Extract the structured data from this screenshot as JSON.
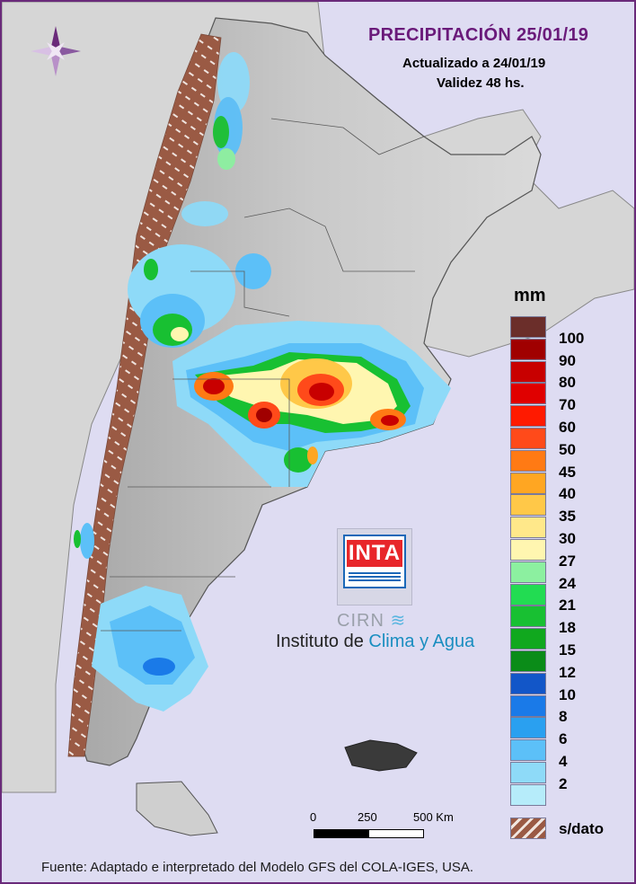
{
  "header": {
    "title": "PRECIPITACIÓN 25/01/19",
    "updated": "Actualizado a 24/01/19",
    "validity": "Validez 48 hs."
  },
  "legend": {
    "unit": "mm",
    "items": [
      {
        "label": "100",
        "color": "#6b2e2a"
      },
      {
        "label": "90",
        "color": "#a00000"
      },
      {
        "label": "80",
        "color": "#c80000"
      },
      {
        "label": "70",
        "color": "#e00000"
      },
      {
        "label": "60",
        "color": "#ff1a00"
      },
      {
        "label": "50",
        "color": "#ff4a1a"
      },
      {
        "label": "45",
        "color": "#ff7a14"
      },
      {
        "label": "40",
        "color": "#ffa622"
      },
      {
        "label": "35",
        "color": "#ffc848"
      },
      {
        "label": "30",
        "color": "#ffe88a"
      },
      {
        "label": "27",
        "color": "#fff6b0"
      },
      {
        "label": "24",
        "color": "#8cf0a0"
      },
      {
        "label": "21",
        "color": "#22dc52"
      },
      {
        "label": "18",
        "color": "#18c032"
      },
      {
        "label": "15",
        "color": "#10a81e"
      },
      {
        "label": "12",
        "color": "#0a8c18"
      },
      {
        "label": "10",
        "color": "#1256c8"
      },
      {
        "label": "8",
        "color": "#1a7ae8"
      },
      {
        "label": "6",
        "color": "#2aa0f0"
      },
      {
        "label": "4",
        "color": "#5cc0f8"
      },
      {
        "label": "2",
        "color": "#8edaf8"
      },
      {
        "label": "",
        "color": "#b6ecfa"
      }
    ],
    "no_data_label": "s/dato"
  },
  "scale": {
    "labels": [
      "0",
      "250",
      "500 Km"
    ]
  },
  "logo": {
    "inta": "INTA",
    "cirn": "CIRN",
    "institute_a": "Instituto de",
    "institute_b": "Clima y Agua"
  },
  "footer": "Fuente: Adaptado e interpretado del Modelo GFS del COLA-IGES, USA."
}
